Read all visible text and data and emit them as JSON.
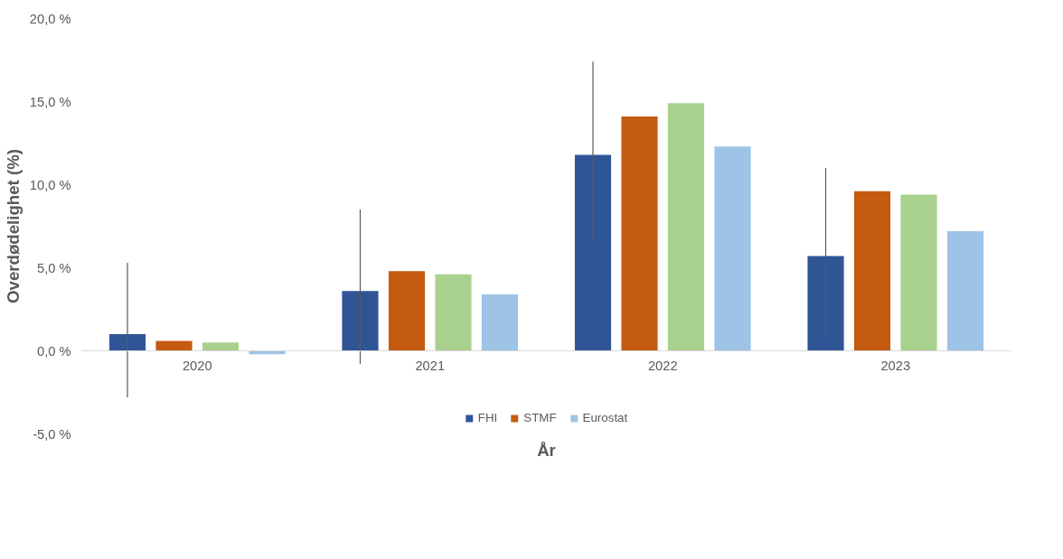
{
  "chart_data": {
    "type": "bar",
    "xlabel": "År",
    "ylabel": "Overdødelighet (%)",
    "categories": [
      "2020",
      "2021",
      "2022",
      "2023"
    ],
    "series": [
      {
        "name": "FHI",
        "color": "#2f5597",
        "values": [
          1.0,
          3.6,
          11.8,
          5.7
        ],
        "errors": [
          [
            -2.8,
            5.3
          ],
          [
            -0.8,
            8.5
          ],
          [
            6.6,
            17.4
          ],
          [
            0.8,
            11.0
          ]
        ]
      },
      {
        "name": "STMF",
        "color": "#c55a11",
        "values": [
          0.6,
          4.8,
          14.1,
          9.6
        ]
      },
      {
        "color": "#a9d18e",
        "values": [
          0.5,
          4.6,
          14.9,
          9.4
        ]
      },
      {
        "name": "Eurostat",
        "color": "#9dc3e6",
        "values": [
          -0.2,
          3.4,
          12.3,
          7.2
        ]
      }
    ],
    "ylim": [
      -5,
      20
    ],
    "yticks": [
      {
        "value": -5,
        "label": "-5,0 %"
      },
      {
        "value": 0,
        "label": "0,0 %"
      },
      {
        "value": 5,
        "label": "5,0 %"
      },
      {
        "value": 10,
        "label": "10,0 %"
      },
      {
        "value": 15,
        "label": "15,0 %"
      },
      {
        "value": 20,
        "label": "20,0 %"
      }
    ],
    "grid": false,
    "legend": "bottom"
  }
}
